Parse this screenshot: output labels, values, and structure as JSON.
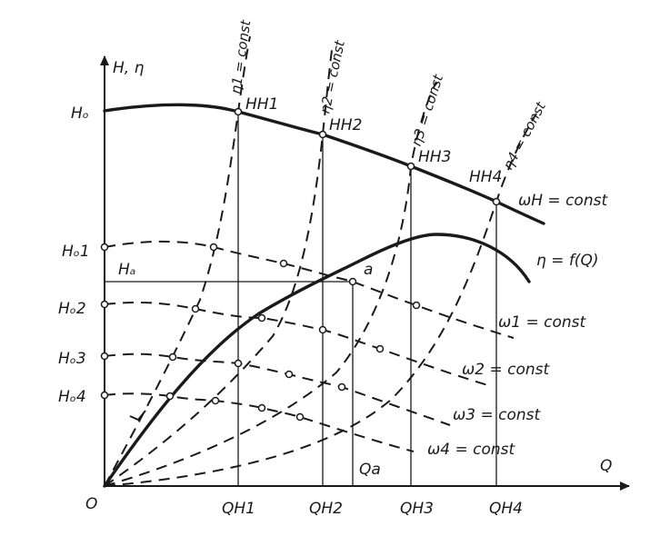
{
  "axes": {
    "y_label": "H, η",
    "x_label": "Q",
    "origin": "O"
  },
  "y_labels": {
    "h0": "Hₒ",
    "h01": "Hₒ1",
    "ha": "Hₐ",
    "h02": "Hₒ2",
    "h03": "Hₒ3",
    "h04": "Hₒ4"
  },
  "x_labels": {
    "qh1": "QH1",
    "qh2": "QH2",
    "qh3": "QH3",
    "qh4": "QH4",
    "qa": "Qa"
  },
  "point_labels": {
    "hh1": "HH1",
    "hh2": "HH2",
    "hh3": "HH3",
    "hh4": "HH4",
    "a": "a"
  },
  "curve_labels": {
    "omega_h": "ωH = const",
    "eta_curve": "η = f(Q)",
    "omega1": "ω1 = const",
    "omega2": "ω2 = const",
    "omega3": "ω3 = const",
    "omega4": "ω4 = const"
  },
  "eta_labels": {
    "eta1": "η1 = const",
    "eta2": "η2 = const",
    "eta3": "η3 = const",
    "eta4": "η4 = const"
  },
  "colors": {
    "ink": "#1a1a1a",
    "background": "#ffffff"
  }
}
